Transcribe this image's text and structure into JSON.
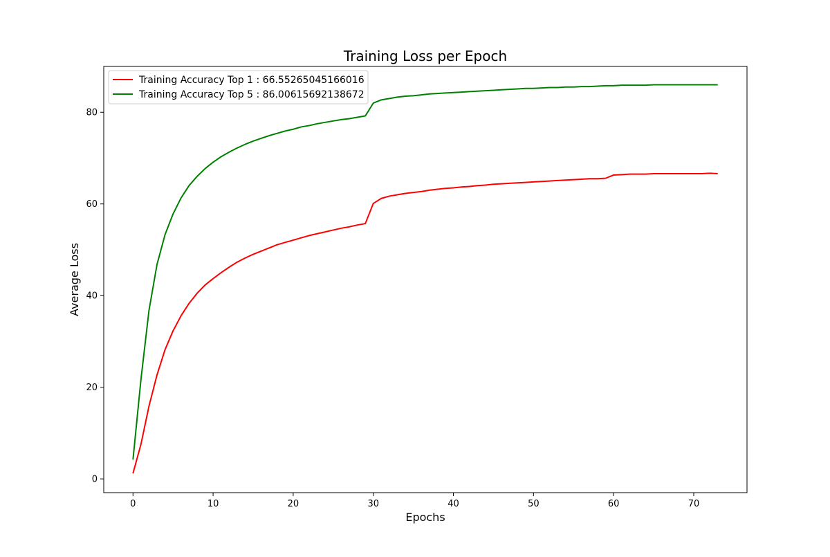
{
  "chart_data": {
    "type": "line",
    "title": "Training Loss per Epoch",
    "xlabel": "Epochs",
    "ylabel": "Average Loss",
    "xlim": [
      -3.65,
      76.65
    ],
    "ylim": [
      -3,
      90
    ],
    "xticks": [
      0,
      10,
      20,
      30,
      40,
      50,
      60,
      70
    ],
    "yticks": [
      0,
      20,
      40,
      60,
      80
    ],
    "grid": false,
    "legend_position": "upper left",
    "x": [
      0,
      1,
      2,
      3,
      4,
      5,
      6,
      7,
      8,
      9,
      10,
      11,
      12,
      13,
      14,
      15,
      16,
      17,
      18,
      19,
      20,
      21,
      22,
      23,
      24,
      25,
      26,
      27,
      28,
      29,
      30,
      31,
      32,
      33,
      34,
      35,
      36,
      37,
      38,
      39,
      40,
      41,
      42,
      43,
      44,
      45,
      46,
      47,
      48,
      49,
      50,
      51,
      52,
      53,
      54,
      55,
      56,
      57,
      58,
      59,
      60,
      61,
      62,
      63,
      64,
      65,
      66,
      67,
      68,
      69,
      70,
      71,
      72,
      73
    ],
    "series": [
      {
        "name": "Training Accuracy Top 1 : 66.55265045166016",
        "color": "#ff0000",
        "values": [
          1.2,
          7.6,
          15.9,
          22.7,
          28.2,
          32.3,
          35.6,
          38.3,
          40.5,
          42.3,
          43.7,
          45.0,
          46.2,
          47.3,
          48.2,
          49.0,
          49.7,
          50.4,
          51.1,
          51.6,
          52.1,
          52.6,
          53.1,
          53.5,
          53.9,
          54.3,
          54.7,
          55.0,
          55.4,
          55.7,
          60.1,
          61.2,
          61.7,
          62.0,
          62.3,
          62.5,
          62.7,
          63.0,
          63.2,
          63.4,
          63.5,
          63.7,
          63.8,
          64.0,
          64.1,
          64.3,
          64.4,
          64.5,
          64.6,
          64.7,
          64.8,
          64.9,
          65.0,
          65.1,
          65.2,
          65.3,
          65.4,
          65.5,
          65.5,
          65.6,
          66.3,
          66.4,
          66.5,
          66.5,
          66.5,
          66.6,
          66.6,
          66.6,
          66.6,
          66.6,
          66.6,
          66.6,
          66.7,
          66.6
        ]
      },
      {
        "name": "Training Accuracy Top 5 : 86.00615692138672",
        "color": "#008000",
        "values": [
          4.2,
          21.8,
          36.8,
          46.8,
          53.3,
          57.8,
          61.3,
          64.0,
          66.0,
          67.7,
          69.1,
          70.3,
          71.3,
          72.2,
          73.0,
          73.7,
          74.3,
          74.9,
          75.4,
          75.9,
          76.3,
          76.8,
          77.1,
          77.5,
          77.8,
          78.1,
          78.4,
          78.6,
          78.9,
          79.2,
          82.0,
          82.7,
          83.0,
          83.3,
          83.5,
          83.6,
          83.8,
          84.0,
          84.1,
          84.2,
          84.3,
          84.4,
          84.5,
          84.6,
          84.7,
          84.8,
          84.9,
          85.0,
          85.1,
          85.2,
          85.2,
          85.3,
          85.4,
          85.4,
          85.5,
          85.5,
          85.6,
          85.6,
          85.7,
          85.8,
          85.8,
          85.9,
          85.9,
          85.9,
          85.9,
          86.0,
          86.0,
          86.0,
          86.0,
          86.0,
          86.0,
          86.0,
          86.0,
          86.0
        ]
      }
    ]
  }
}
